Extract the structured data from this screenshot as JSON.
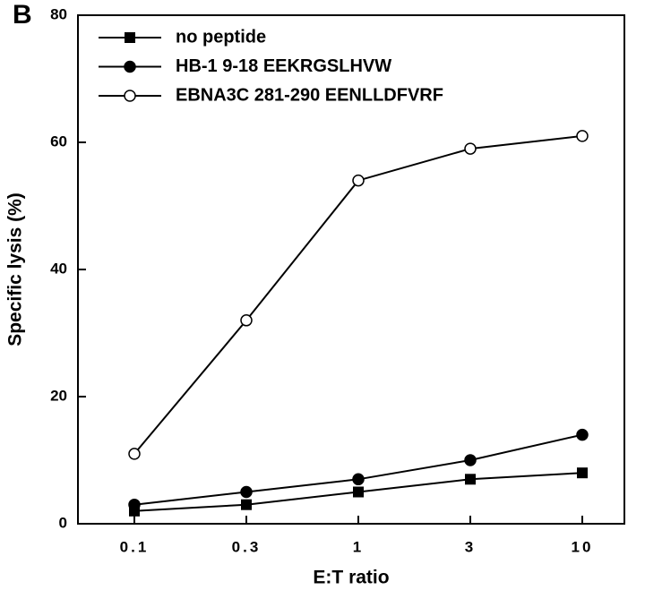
{
  "chart_data": {
    "type": "line",
    "panel_label": "B",
    "xlabel": "E:T ratio",
    "ylabel": "Specific lysis (%)",
    "categories": [
      "0.1",
      "0.3",
      "1",
      "3",
      "10"
    ],
    "ylim": [
      0,
      80
    ],
    "yticks": [
      0,
      20,
      40,
      60,
      80
    ],
    "legend": "upper left",
    "series": [
      {
        "name": "no peptide",
        "color": "#000000",
        "marker": "square",
        "values": [
          2,
          3,
          5,
          7,
          8
        ]
      },
      {
        "name": "HB-1 9-18 EEKRGSLHVW",
        "color": "#000000",
        "marker": "circle",
        "values": [
          3,
          5,
          7,
          10,
          14
        ]
      },
      {
        "name": "EBNA3C 281-290 EENLLDFVRF",
        "color": "#000000",
        "marker": "open-circle",
        "values": [
          11,
          32,
          54,
          59,
          61
        ]
      }
    ]
  }
}
